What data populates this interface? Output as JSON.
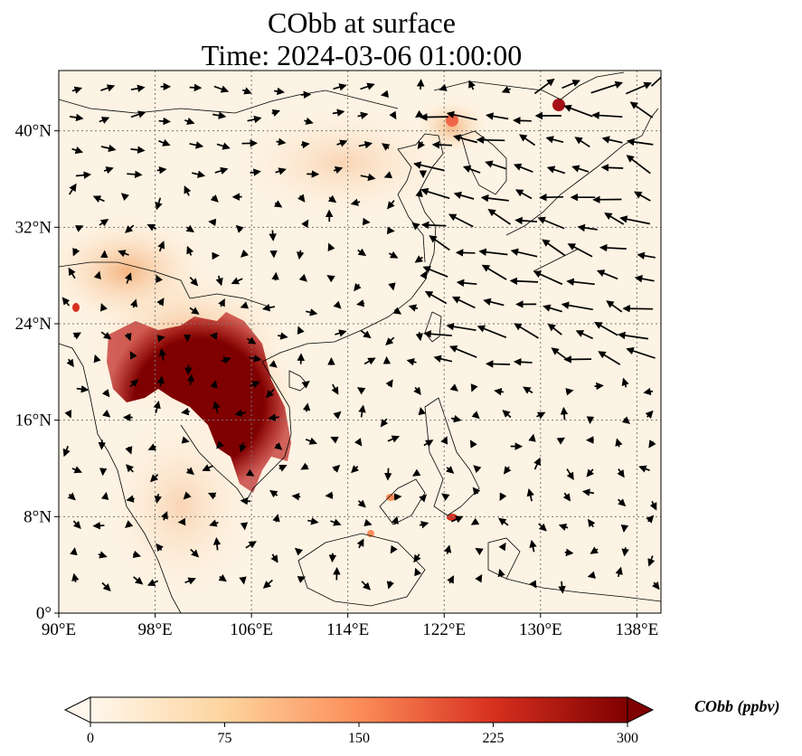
{
  "title": {
    "line1": "CObb at surface",
    "line2": "Time: 2024-03-06 01:00:00"
  },
  "map": {
    "lon_range": [
      90,
      140
    ],
    "lat_range": [
      0,
      45
    ],
    "lon_ticks": [
      "90°E",
      "98°E",
      "106°E",
      "114°E",
      "122°E",
      "130°E",
      "138°E"
    ],
    "lat_ticks": [
      "0°",
      "8°N",
      "16°N",
      "24°N",
      "32°N",
      "40°N"
    ],
    "gridlines": "dotted"
  },
  "colorbar": {
    "label": "CObb (ppbv)",
    "ticks": [
      "0",
      "75",
      "150",
      "225",
      "300"
    ],
    "range": [
      0,
      300
    ],
    "colormap": "OrRd",
    "colors": [
      "#fff7ec",
      "#fdd49e",
      "#fc8d59",
      "#d7301f",
      "#7f0000"
    ],
    "extend": "both"
  }
}
